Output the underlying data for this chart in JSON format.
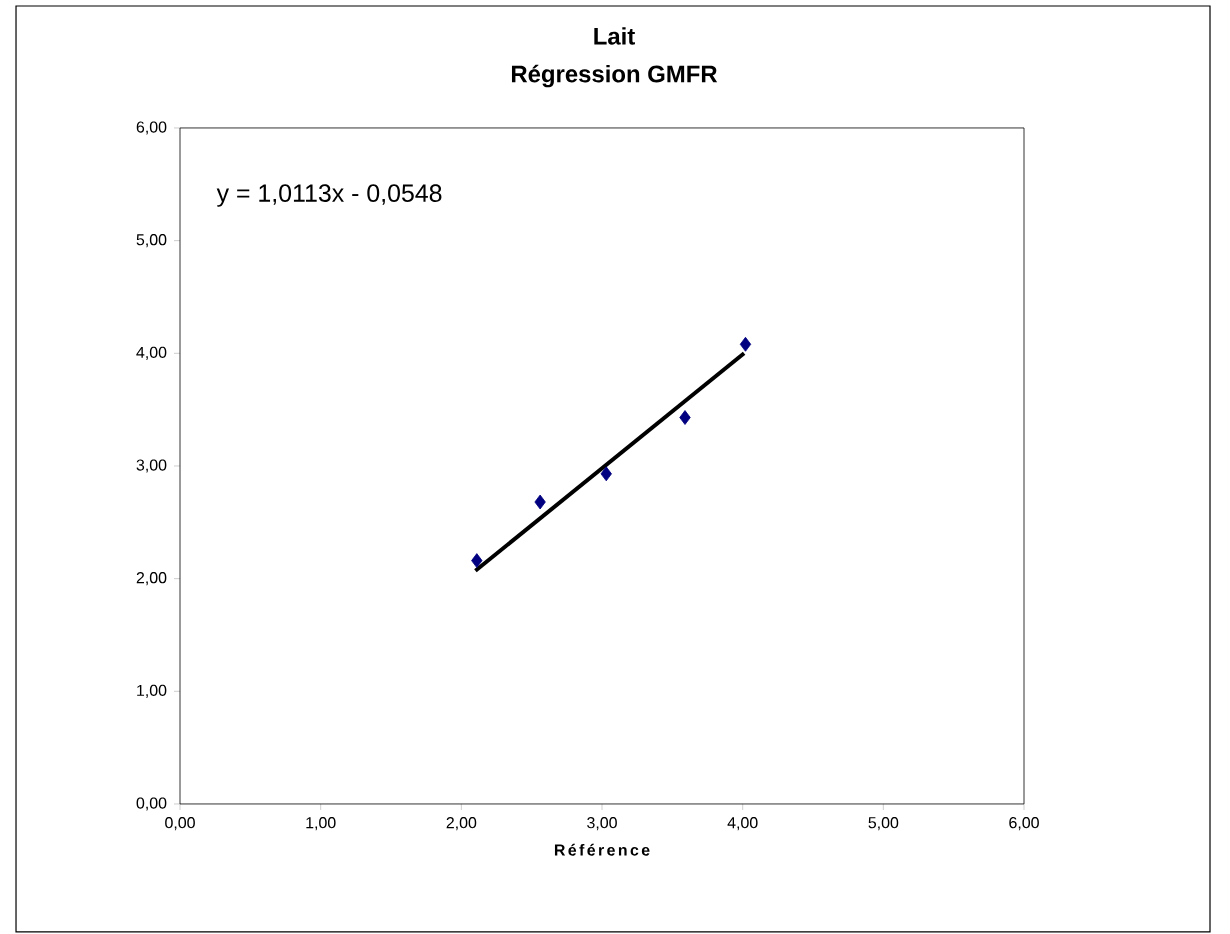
{
  "chart_data": {
    "type": "scatter",
    "title": "Lait",
    "subtitle": "Régression GMFR",
    "xlabel": "Référence",
    "annotations": [
      "y = 1,0113x - 0,0548"
    ],
    "series": [
      {
        "color": "#000080",
        "marker": "diamond",
        "x": [
          2.11,
          2.56,
          3.03,
          3.59,
          4.02
        ],
        "values": [
          2.16,
          2.68,
          2.93,
          3.43,
          4.08
        ]
      },
      {
        "type": "line",
        "color": "#000000",
        "marker": "none",
        "x": [
          2.1,
          4.01
        ],
        "values": [
          2.07,
          4.0
        ]
      }
    ],
    "xlim": [
      0,
      6
    ],
    "ylim": [
      0,
      6
    ],
    "xticks": [
      {
        "value": 0,
        "label": "0,00"
      },
      {
        "value": 1,
        "label": "1,00"
      },
      {
        "value": 2,
        "label": "2,00"
      },
      {
        "value": 3,
        "label": "3,00"
      },
      {
        "value": 4,
        "label": "4,00"
      },
      {
        "value": 5,
        "label": "5,00"
      },
      {
        "value": 6,
        "label": "6,00"
      }
    ],
    "yticks": [
      {
        "value": 0,
        "label": "0,00"
      },
      {
        "value": 1,
        "label": "1,00"
      },
      {
        "value": 2,
        "label": "2,00"
      },
      {
        "value": 3,
        "label": "3,00"
      },
      {
        "value": 4,
        "label": "4,00"
      },
      {
        "value": 5,
        "label": "5,00"
      },
      {
        "value": 6,
        "label": "6,00"
      }
    ],
    "grid": false
  }
}
